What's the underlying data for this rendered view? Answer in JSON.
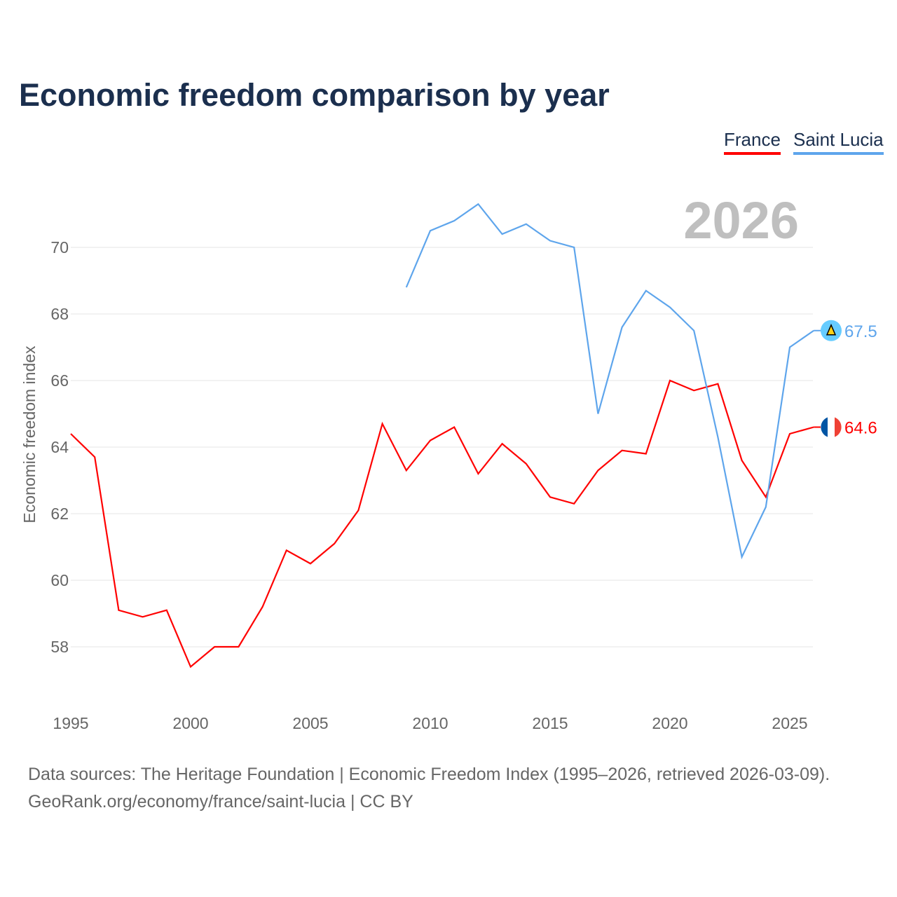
{
  "title": "Economic freedom comparison by year",
  "year_label": "2026",
  "source_line1": "Data sources: The Heritage Foundation | Economic Freedom Index (1995–2026, retrieved 2026-03-09).",
  "source_line2": "GeoRank.org/economy/france/saint-lucia | CC BY",
  "chart_data": {
    "type": "line",
    "title": "Economic freedom comparison by year",
    "xlabel": "",
    "ylabel": "Economic freedom index",
    "xlim": [
      1995,
      2026
    ],
    "ylim": [
      56.5,
      72
    ],
    "xticks": [
      1995,
      2000,
      2005,
      2010,
      2015,
      2020,
      2025
    ],
    "yticks": [
      58,
      60,
      62,
      64,
      66,
      68,
      70
    ],
    "grid": true,
    "legend": "top-right",
    "series": [
      {
        "name": "France",
        "color": "#ff0000",
        "end_label": "64.6",
        "x": [
          1995,
          1996,
          1997,
          1998,
          1999,
          2000,
          2001,
          2002,
          2003,
          2004,
          2005,
          2006,
          2007,
          2008,
          2009,
          2010,
          2011,
          2012,
          2013,
          2014,
          2015,
          2016,
          2017,
          2018,
          2019,
          2020,
          2021,
          2022,
          2023,
          2024,
          2025,
          2026
        ],
        "y": [
          64.4,
          63.7,
          59.1,
          58.9,
          59.1,
          57.4,
          58.0,
          58.0,
          59.2,
          60.9,
          60.5,
          61.1,
          62.1,
          64.7,
          63.3,
          64.2,
          64.6,
          63.2,
          64.1,
          63.5,
          62.5,
          62.3,
          63.3,
          63.9,
          63.8,
          66.0,
          65.7,
          65.9,
          63.6,
          62.5,
          64.4,
          64.6
        ]
      },
      {
        "name": "Saint Lucia",
        "color": "#5ea5ec",
        "end_label": "67.5",
        "x": [
          2009,
          2010,
          2011,
          2012,
          2013,
          2014,
          2015,
          2016,
          2017,
          2018,
          2019,
          2020,
          2021,
          2022,
          2023,
          2024,
          2025,
          2026
        ],
        "y": [
          68.8,
          70.5,
          70.8,
          71.3,
          70.4,
          70.7,
          70.2,
          70.0,
          65.0,
          67.6,
          68.7,
          68.2,
          67.5,
          64.3,
          60.7,
          62.2,
          67.0,
          67.5
        ]
      }
    ]
  }
}
